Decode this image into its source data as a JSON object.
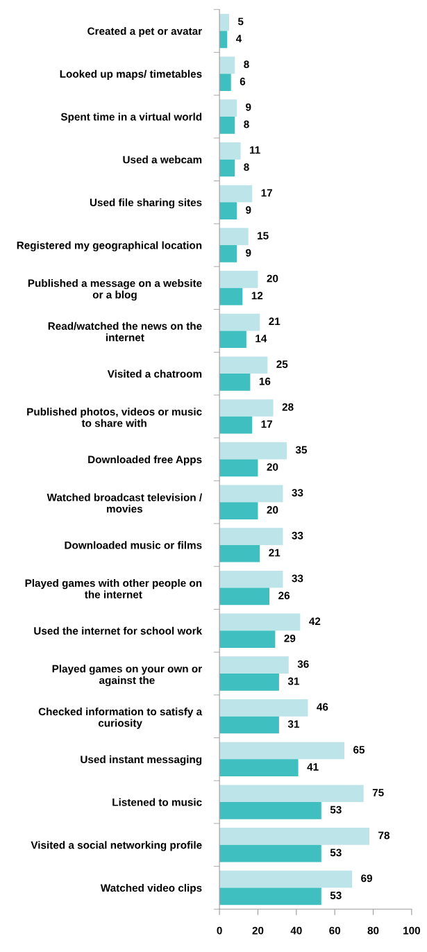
{
  "chart_data": {
    "type": "bar",
    "orientation": "horizontal",
    "categories": [
      "Created a pet or avatar",
      "Looked up maps/ timetables",
      "Spent time in a virtual world",
      "Used a webcam",
      "Used file sharing sites",
      "Registered my geographical location",
      "Published a message on a website or a blog",
      "Read/watched the news on the internet",
      "Visited a chatroom",
      "Published photos, videos or music to share with",
      "Downloaded free Apps",
      "Watched broadcast television / movies",
      "Downloaded music or films",
      "Played games with other people on the internet",
      "Used the internet for school work",
      "Played games on your own or against the",
      "Checked information to satisfy a curiosity",
      "Used instant messaging",
      "Listened to music",
      "Visited a social networking profile",
      "Watched video clips"
    ],
    "series": [
      {
        "color": "#bde4e8",
        "values": [
          5,
          8,
          9,
          11,
          17,
          15,
          20,
          21,
          25,
          28,
          35,
          33,
          33,
          33,
          42,
          36,
          46,
          65,
          75,
          78,
          69
        ]
      },
      {
        "color": "#40bfc1",
        "values": [
          4,
          6,
          8,
          8,
          9,
          9,
          12,
          14,
          16,
          17,
          20,
          20,
          21,
          26,
          29,
          31,
          31,
          41,
          53,
          53,
          53
        ]
      }
    ],
    "xlim": [
      0,
      100
    ],
    "xticks": [
      0,
      20,
      40,
      60,
      80,
      100
    ],
    "data_labels": true,
    "grid": false,
    "legend": false
  }
}
